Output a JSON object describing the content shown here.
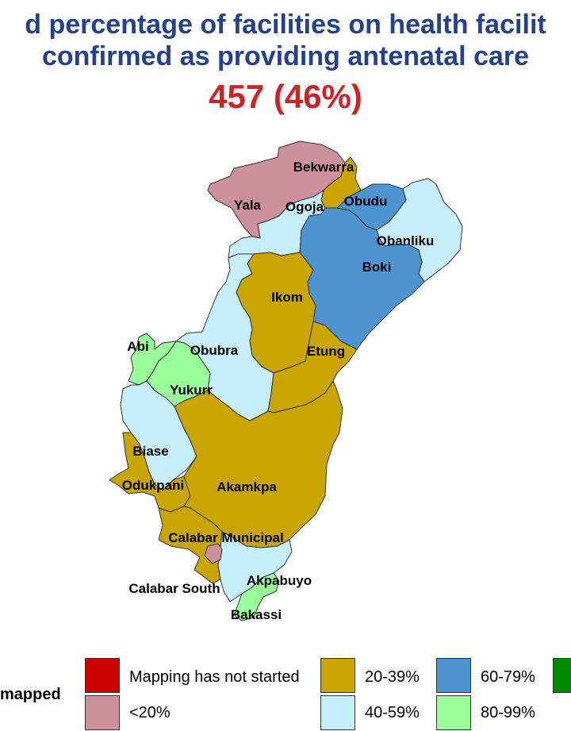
{
  "title": {
    "line1": "d percentage of facilities on health facilit",
    "line2": "confirmed as providing antenatal care",
    "stat": "457 (46%)"
  },
  "colors": {
    "title": "#24418a",
    "stat": "#cc2229",
    "not_started": "#cc0000",
    "lt20": "#cc919b",
    "p20_39": "#c9a500",
    "p40_59": "#c6eefc",
    "p60_79": "#4d94d1",
    "p80_99": "#99fe99",
    "p100": "#008800"
  },
  "map": {
    "lgas": [
      {
        "name": "Bekwarra",
        "category": "20-39%"
      },
      {
        "name": "Yala",
        "category": "<20%"
      },
      {
        "name": "Ogoja",
        "category": "40-59%"
      },
      {
        "name": "Obudu",
        "category": "60-79%"
      },
      {
        "name": "Obanliku",
        "category": "40-59%"
      },
      {
        "name": "Boki",
        "category": "60-79%"
      },
      {
        "name": "Ikom",
        "category": "20-39%"
      },
      {
        "name": "Etung",
        "category": "20-39%"
      },
      {
        "name": "Abi",
        "category": "80-99%"
      },
      {
        "name": "Obubra",
        "category": "40-59%"
      },
      {
        "name": "Yukurr",
        "category": "80-99%"
      },
      {
        "name": "Biase",
        "category": "40-59%"
      },
      {
        "name": "Odukpani",
        "category": "20-39%"
      },
      {
        "name": "Akamkpa",
        "category": "20-39%"
      },
      {
        "name": "Calabar Municipal",
        "category": "<20%"
      },
      {
        "name": "Akpabuyo",
        "category": "40-59%"
      },
      {
        "name": "Calabar South",
        "category": "20-39%"
      },
      {
        "name": "Bakassi",
        "category": "80-99%"
      }
    ]
  },
  "legend": {
    "title": "R mapped",
    "items": [
      {
        "label": "Mapping has not started",
        "color": "#cc0000"
      },
      {
        "label": "<20%",
        "color": "#cc919b"
      },
      {
        "label": "20-39%",
        "color": "#c9a500"
      },
      {
        "label": "40-59%",
        "color": "#c6eefc"
      },
      {
        "label": "60-79%",
        "color": "#4d94d1"
      },
      {
        "label": "80-99%",
        "color": "#99fe99"
      },
      {
        "label": "",
        "color": "#008800"
      }
    ]
  }
}
